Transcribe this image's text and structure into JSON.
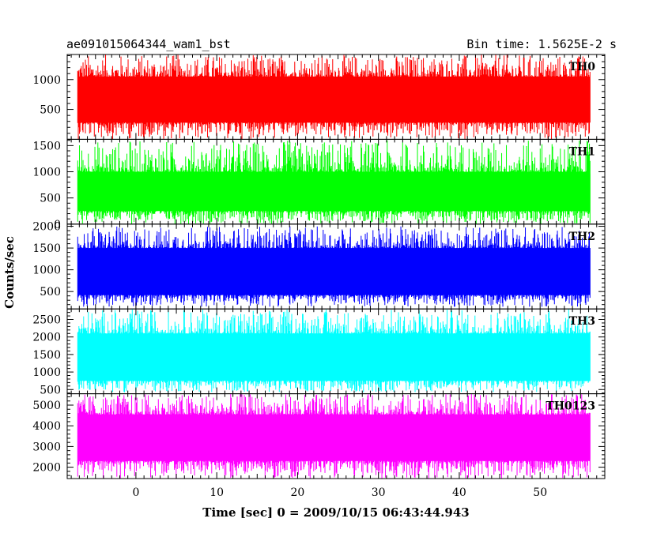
{
  "header": {
    "title": "ae091015064344_wam1_bst",
    "bin_time": "Bin time: 1.5625E-2 s"
  },
  "axes": {
    "xlabel": "Time [sec] 0 = 2009/10/15 06:43:44.943",
    "ylabel": "Counts/sec"
  },
  "chart_data": {
    "type": "line",
    "title": "ae091015064344_wam1_bst",
    "subtitle": "Bin time: 1.5625E-2 s",
    "xlabel": "Time [sec] 0 = 2009/10/15 06:43:44.943",
    "ylabel": "Counts/sec",
    "xlim": [
      -8.5,
      58
    ],
    "data_xrange": [
      -7.2,
      56.2
    ],
    "x_ticks": [
      0,
      10,
      20,
      30,
      40,
      50
    ],
    "grid": false,
    "panels": [
      {
        "name": "TH0",
        "color": "#ff0000",
        "ylim": [
          0,
          1420
        ],
        "y_ticks": [
          500,
          1000
        ],
        "band": [
          280,
          1050
        ],
        "peak_max": 1420,
        "trough_min": 0,
        "level": 650
      },
      {
        "name": "TH1",
        "color": "#00ff00",
        "ylim": [
          0,
          1620
        ],
        "y_ticks": [
          0,
          500,
          1000,
          1500
        ],
        "band": [
          250,
          1000
        ],
        "peak_max": 1600,
        "trough_min": 0,
        "level": 600
      },
      {
        "name": "TH2",
        "color": "#0000ff",
        "ylim": [
          100,
          2050
        ],
        "y_ticks": [
          500,
          1000,
          1500,
          2000
        ],
        "band": [
          420,
          1500
        ],
        "peak_max": 2000,
        "trough_min": 150,
        "level": 950
      },
      {
        "name": "TH3",
        "color": "#00ffff",
        "ylim": [
          380,
          2800
        ],
        "y_ticks": [
          500,
          1000,
          1500,
          2000,
          2500
        ],
        "band": [
          750,
          2100
        ],
        "peak_max": 2800,
        "trough_min": 420,
        "level": 1400
      },
      {
        "name": "TH0123",
        "color": "#ff00ff",
        "ylim": [
          1450,
          5550
        ],
        "y_ticks": [
          2000,
          3000,
          4000,
          5000
        ],
        "band": [
          2300,
          4550
        ],
        "peak_max": 5550,
        "trough_min": 1450,
        "level": 3400
      }
    ]
  }
}
